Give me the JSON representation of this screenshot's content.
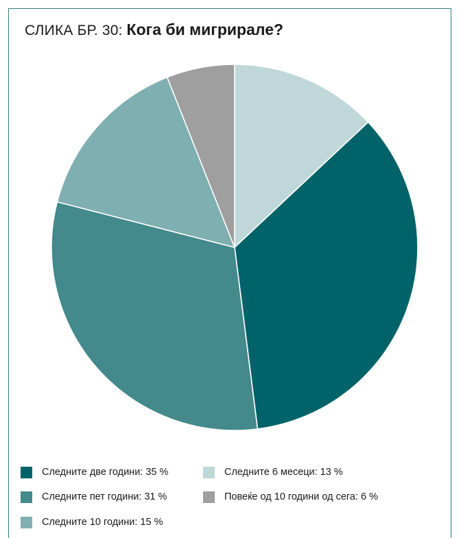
{
  "header": {
    "prefix": "СЛИКА БР. 30:",
    "title": "Кога би мигрирале?"
  },
  "chart_data": {
    "type": "pie",
    "start_angle_deg": 0,
    "direction": "clockwise",
    "slices": [
      {
        "label": "Следните 6 месеци",
        "value": 13,
        "color": "#bfd7d8"
      },
      {
        "label": "Следните две години",
        "value": 35,
        "color": "#00636a"
      },
      {
        "label": "Следните пет години",
        "value": 31,
        "color": "#44898b"
      },
      {
        "label": "Следните 10 години",
        "value": 15,
        "color": "#7fafb1"
      },
      {
        "label": "Повеќе од 10 години од сега",
        "value": 6,
        "color": "#9f9f9f"
      }
    ],
    "legend": [
      {
        "text": "Следните две години: 35 %",
        "color": "#00636a"
      },
      {
        "text": "Следните 6 месеци: 13 %",
        "color": "#bfd7d8"
      },
      {
        "text": "Следните пет години: 31 %",
        "color": "#44898b"
      },
      {
        "text": "Повеќе од 10 години од сега: 6 %",
        "color": "#9f9f9f"
      },
      {
        "text": "Следните 10 години: 15 %",
        "color": "#7fafb1"
      }
    ]
  }
}
